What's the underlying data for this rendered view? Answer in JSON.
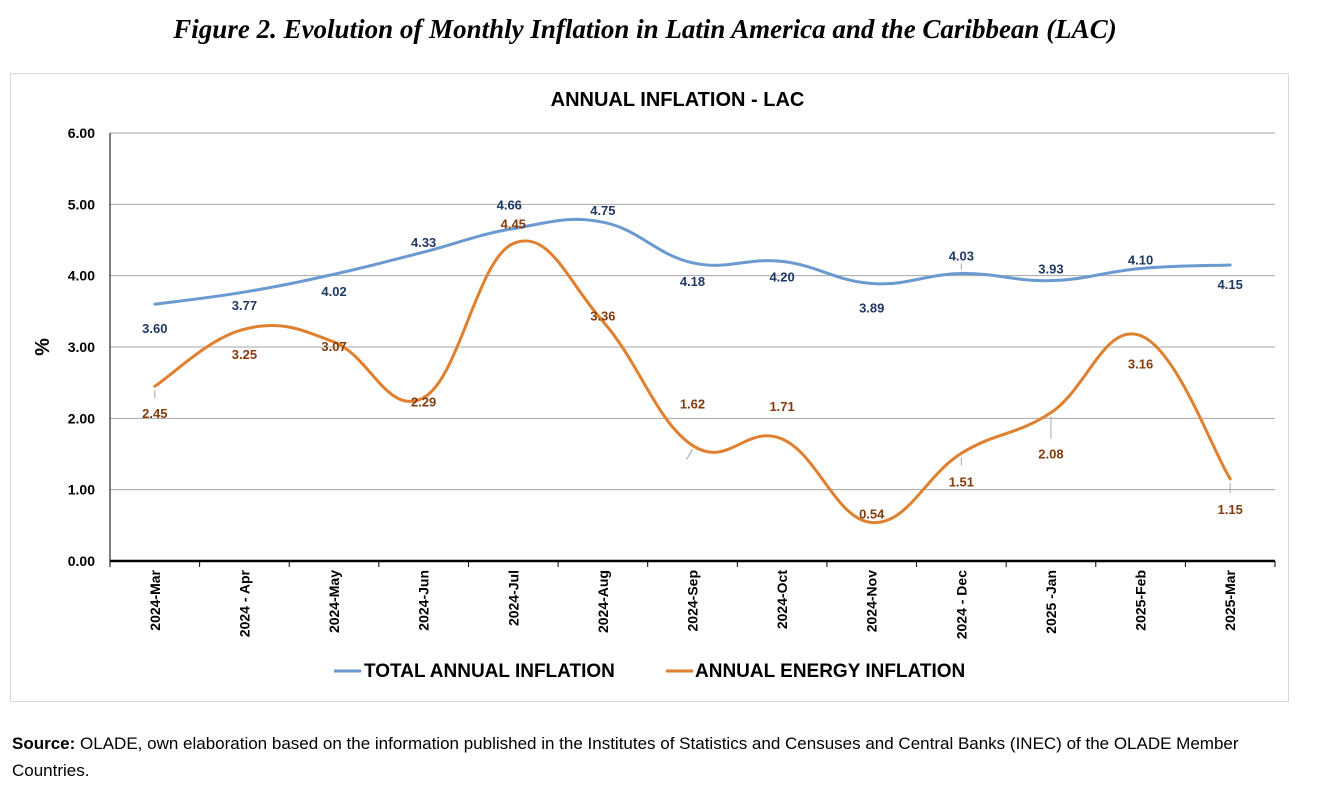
{
  "figure_title": "Figure 2. Evolution of Monthly Inflation in Latin America and the Caribbean (LAC)",
  "source": {
    "label": "Source:",
    "text": "OLADE, own elaboration based on the information published in the Institutes of Statistics and Censuses and Central Banks (INEC) of the OLADE Member Countries."
  },
  "chart_data": {
    "type": "line",
    "title": "ANNUAL INFLATION - LAC",
    "xlabel": "",
    "ylabel": "%",
    "ylim": [
      0,
      6
    ],
    "yticks": [
      "0.00",
      "1.00",
      "2.00",
      "3.00",
      "4.00",
      "5.00",
      "6.00"
    ],
    "grid": true,
    "legend_position": "bottom",
    "categories": [
      "2024-Mar",
      "2024 - Apr",
      "2024-May",
      "2024-Jun",
      "2024-Jul",
      "2024-Aug",
      "2024-Sep",
      "2024-Oct",
      "2024-Nov",
      "2024 - Dec",
      "2025 -Jan",
      "2025-Feb",
      "2025-Mar"
    ],
    "series": [
      {
        "name": "TOTAL ANNUAL INFLATION",
        "color": "#6a9ad0",
        "label_color": "#1f3864",
        "values": [
          3.6,
          3.77,
          4.02,
          4.33,
          4.66,
          4.75,
          4.18,
          4.2,
          3.89,
          4.03,
          3.93,
          4.1,
          4.15
        ],
        "labels": [
          "3.60",
          "3.77",
          "4.02",
          "4.33",
          "4.66",
          "4.75",
          "4.18",
          "4.20",
          "3.89",
          "4.03",
          "3.93",
          "4.10",
          "4.15"
        ]
      },
      {
        "name": "ANNUAL ENERGY INFLATION",
        "color": "#e07f2e",
        "label_color": "#843c0c",
        "values": [
          2.45,
          3.25,
          3.07,
          2.29,
          4.45,
          3.36,
          1.62,
          1.71,
          0.54,
          1.51,
          2.08,
          3.16,
          1.15
        ],
        "labels": [
          "2.45",
          "3.25",
          "3.07",
          "2.29",
          "4.45",
          "3.36",
          "1.62",
          "1.71",
          "0.54",
          "1.51",
          "2.08",
          "3.16",
          "1.15"
        ]
      }
    ]
  }
}
